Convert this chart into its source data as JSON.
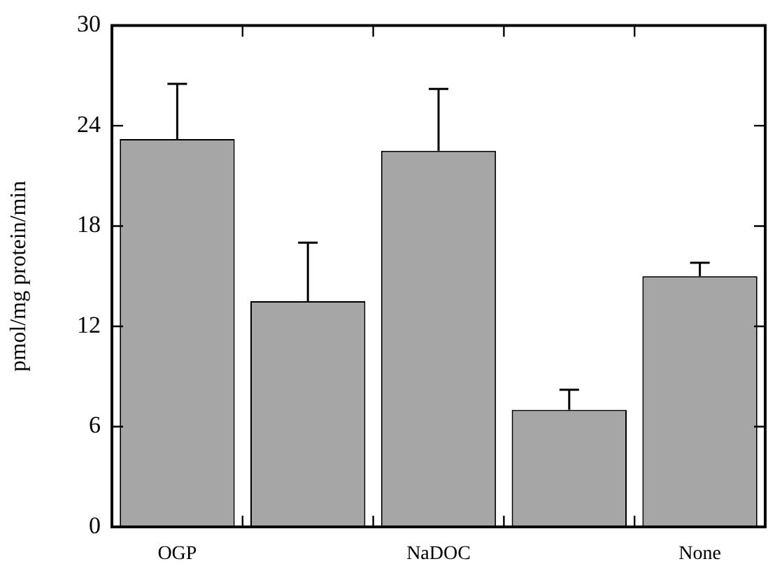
{
  "chart_data": {
    "type": "bar",
    "ylabel": "pmol/mg protein/min",
    "categories": [
      "OGP",
      null,
      "NaDOC",
      null,
      "None"
    ],
    "values": [
      23.2,
      13.5,
      22.5,
      7.0,
      15.0
    ],
    "errors": [
      [
        23.2,
        26.5
      ],
      [
        13.5,
        17.0
      ],
      [
        22.5,
        26.2
      ],
      [
        7.0,
        8.2
      ],
      [
        15.0,
        15.8
      ]
    ],
    "color": "#a6a6a6",
    "ylim": [
      0,
      30
    ],
    "yticks": [
      0,
      6,
      12,
      18,
      24,
      30
    ],
    "grid": false,
    "legend": false
  }
}
